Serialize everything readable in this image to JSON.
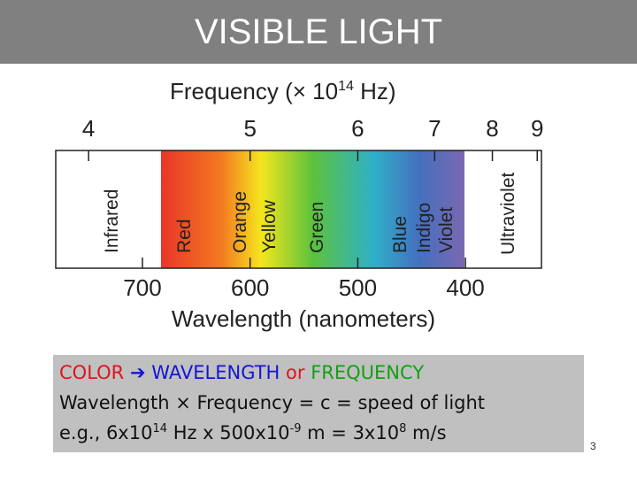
{
  "title": "VISIBLE LIGHT",
  "spectrum": {
    "frequency_label": [
      "Frequency (× 10",
      "14",
      " Hz)"
    ],
    "frequency_ticks": [
      4,
      5,
      6,
      7,
      8,
      9
    ],
    "wavelength_ticks": [
      700,
      600,
      500,
      400
    ],
    "wavelength_label": "Wavelength (nanometers)",
    "bands": [
      "Infrared",
      "Red",
      "Orange",
      "Yellow",
      "Green",
      "Blue",
      "Indigo",
      "Violet",
      "Ultraviolet"
    ]
  },
  "note": {
    "line1": [
      "COLOR",
      "➔",
      "WAVELENGTH",
      "or",
      "FREQUENCY"
    ],
    "line2": "Wavelength × Frequency = c = speed of light",
    "line3": [
      "e.g., 6x10",
      "14",
      " Hz x 500x10",
      "-9",
      " m = 3x10",
      "8",
      " m/s"
    ]
  },
  "page_number": "3"
}
